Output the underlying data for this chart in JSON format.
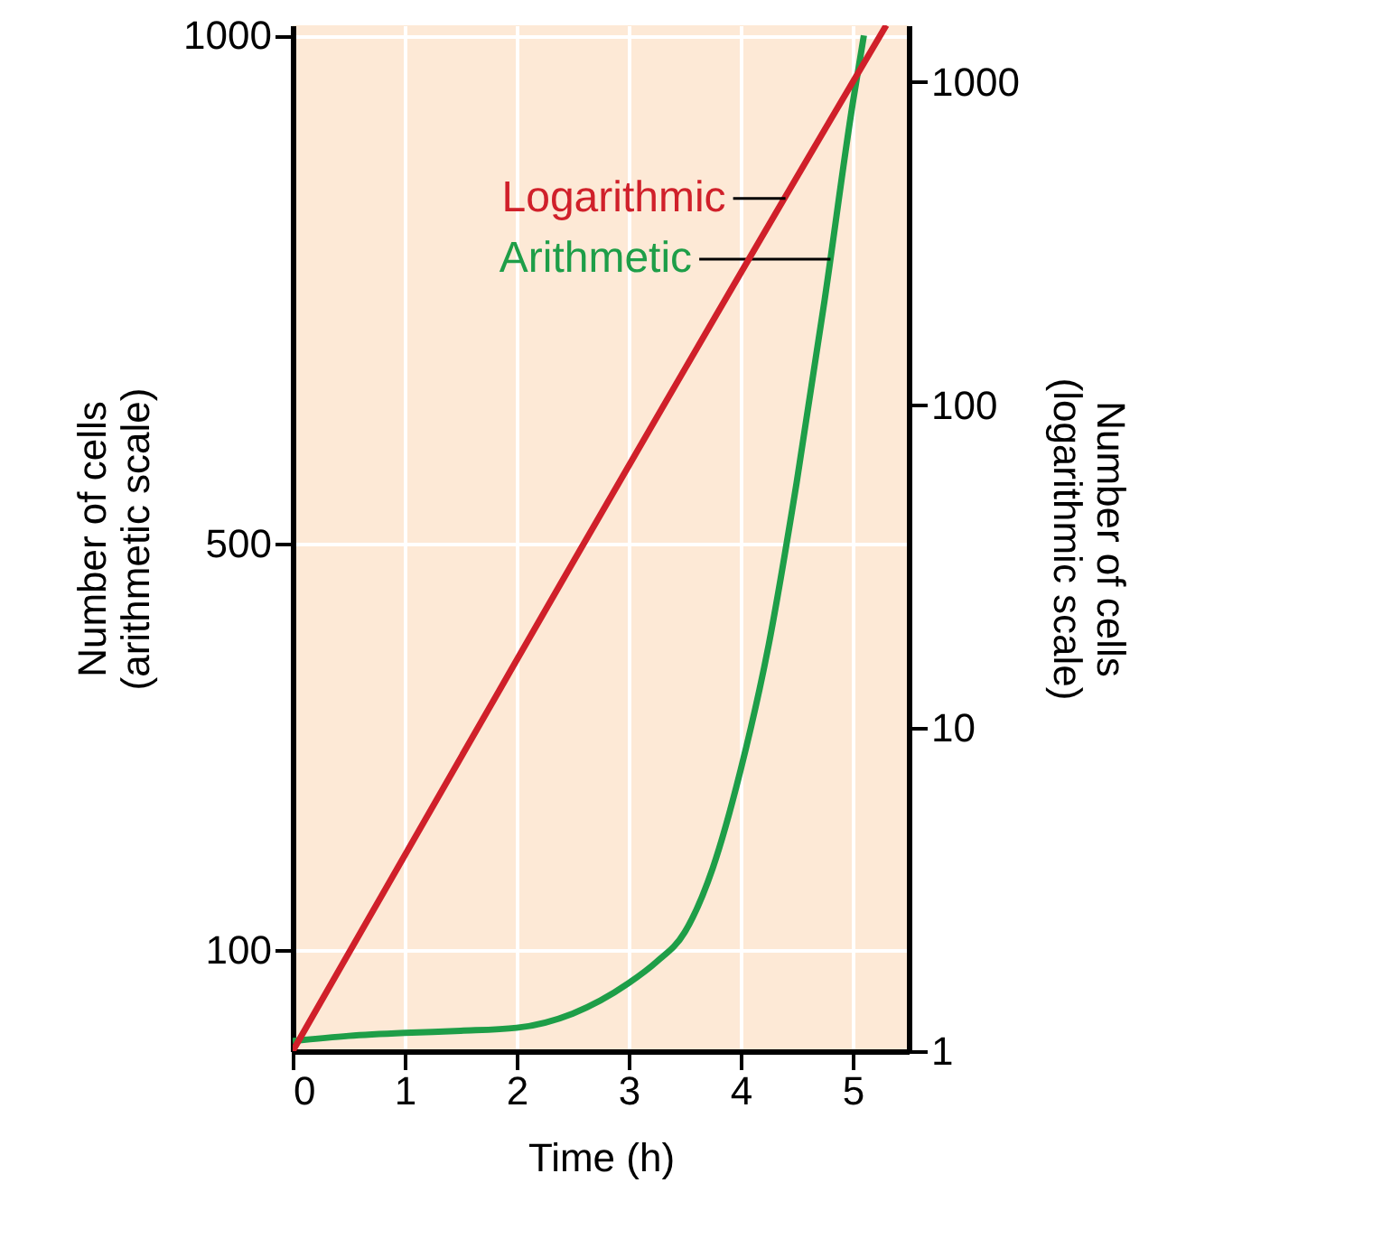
{
  "chart_data": {
    "type": "line",
    "xlabel": "Time (h)",
    "ylabel": "Number of cells\n(arithmetic scale)",
    "y2label": "Number of cells\n(logarithmic scale)",
    "xlim": [
      0,
      5.5
    ],
    "xticks": [
      0,
      1,
      2,
      3,
      4,
      5
    ],
    "ylim": [
      0,
      1010
    ],
    "yticks": [
      100,
      500,
      1000
    ],
    "y2lim": [
      1,
      1500
    ],
    "y2ticks": [
      1,
      10,
      100,
      1000
    ],
    "log": "y2",
    "grid": true,
    "legend": false,
    "series": [
      {
        "name": "Arithmetic",
        "color": "#1e9e48",
        "x": [
          0,
          0.5,
          1,
          1.5,
          2,
          2.5,
          3,
          3.25,
          3.5,
          3.75,
          4,
          4.25,
          4.5,
          4.75,
          5,
          5.1
        ],
        "values": [
          10,
          15,
          18,
          20,
          23,
          37,
          67,
          88,
          117,
          180,
          277,
          400,
          560,
          740,
          933,
          1000
        ]
      },
      {
        "name": "Logarithmic",
        "color": "#d0202a",
        "axis": "y2",
        "x": [
          0,
          5,
          5.3
        ],
        "values": [
          1,
          1000,
          1500
        ]
      }
    ]
  }
}
